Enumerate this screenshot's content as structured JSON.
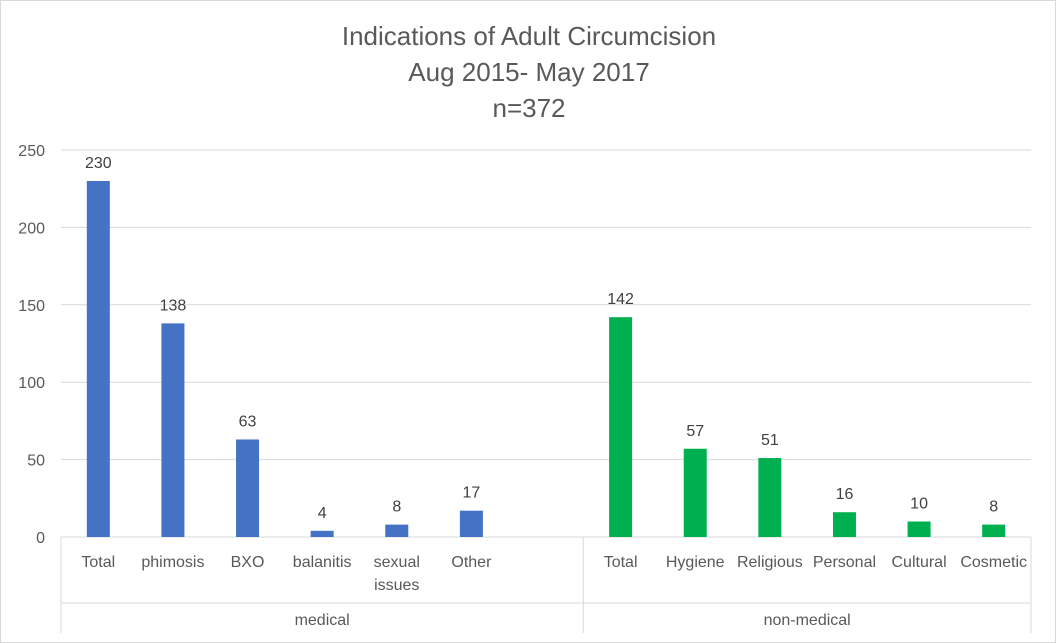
{
  "chart_data": {
    "type": "bar",
    "title": [
      "Indications of Adult Circumcision",
      "Aug 2015- May 2017",
      "n=372"
    ],
    "ylim": [
      0,
      250
    ],
    "yticks": [
      0,
      50,
      100,
      150,
      200,
      250
    ],
    "grid": true,
    "legend": "none",
    "groups": [
      {
        "name": "medical",
        "color": "#4472C4",
        "categories": [
          "Total",
          "phimosis",
          "BXO",
          "balanitis",
          "sexual issues",
          "Other"
        ],
        "values": [
          230,
          138,
          63,
          4,
          8,
          17
        ]
      },
      {
        "name": "non-medical",
        "color": "#00B050",
        "categories": [
          "Total",
          "Hygiene",
          "Religious",
          "Personal",
          "Cultural",
          "Cosmetic"
        ],
        "values": [
          142,
          57,
          51,
          16,
          10,
          8
        ]
      }
    ]
  }
}
